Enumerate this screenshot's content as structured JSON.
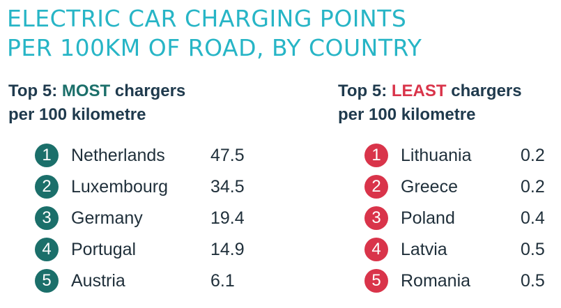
{
  "title": {
    "line1": "ELECTRIC CAR CHARGING POINTS",
    "line2": "PER 100KM OF ROAD, BY COUNTRY"
  },
  "colors": {
    "title": "#27b5c6",
    "most_accent": "#1b6f6a",
    "least_accent": "#d9344a",
    "text": "#1f2f3a"
  },
  "most": {
    "heading_prefix": "Top 5: ",
    "heading_highlight": "MOST",
    "heading_suffix": " chargers",
    "heading_line2": "per 100 kilometre",
    "items": [
      {
        "rank": "1",
        "country": "Netherlands",
        "value": "47.5"
      },
      {
        "rank": "2",
        "country": "Luxembourg",
        "value": "34.5"
      },
      {
        "rank": "3",
        "country": "Germany",
        "value": "19.4"
      },
      {
        "rank": "4",
        "country": "Portugal",
        "value": "14.9"
      },
      {
        "rank": "5",
        "country": "Austria",
        "value": "6.1"
      }
    ]
  },
  "least": {
    "heading_prefix": "Top 5: ",
    "heading_highlight": "LEAST",
    "heading_suffix": " chargers",
    "heading_line2": "per 100 kilometre",
    "items": [
      {
        "rank": "1",
        "country": "Lithuania",
        "value": "0.2"
      },
      {
        "rank": "2",
        "country": "Greece",
        "value": "0.2"
      },
      {
        "rank": "3",
        "country": "Poland",
        "value": "0.4"
      },
      {
        "rank": "4",
        "country": "Latvia",
        "value": "0.5"
      },
      {
        "rank": "5",
        "country": "Romania",
        "value": "0.5"
      }
    ]
  }
}
